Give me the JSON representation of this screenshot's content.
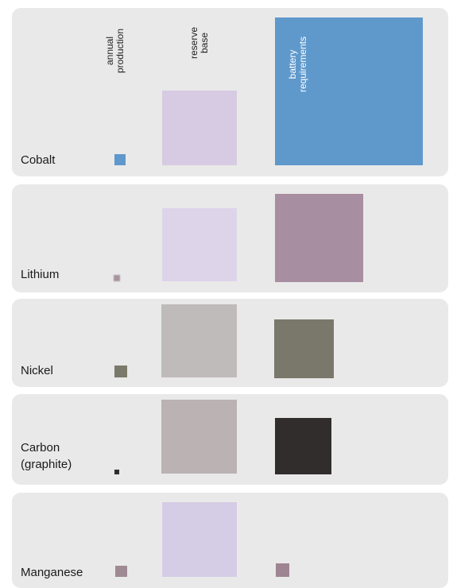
{
  "header": {
    "annual": "annual\nproduction",
    "reserve": "reserve\nbase",
    "battery": "battery\nrequirements"
  },
  "materials": [
    {
      "name": "Cobalt",
      "annual_color": "#5e98cc",
      "reserve_color": "#d6cbe2",
      "battery_color": "#5f99cc"
    },
    {
      "name": "Lithium",
      "annual_color": "#a7949e",
      "reserve_color": "#ddd4ea",
      "battery_color": "#a88ea1"
    },
    {
      "name": "Nickel",
      "annual_color": "#7b7a6a",
      "reserve_color": "#bfbbba",
      "battery_color": "#7a786b"
    },
    {
      "name": "Carbon\n(graphite)",
      "annual_color": "#2e2e2e",
      "reserve_color": "#bab2b3",
      "battery_color": "#302d2c"
    },
    {
      "name": "Manganese",
      "annual_color": "#9f8a94",
      "reserve_color": "#d5cce5",
      "battery_color": "#9e8592"
    }
  ]
}
